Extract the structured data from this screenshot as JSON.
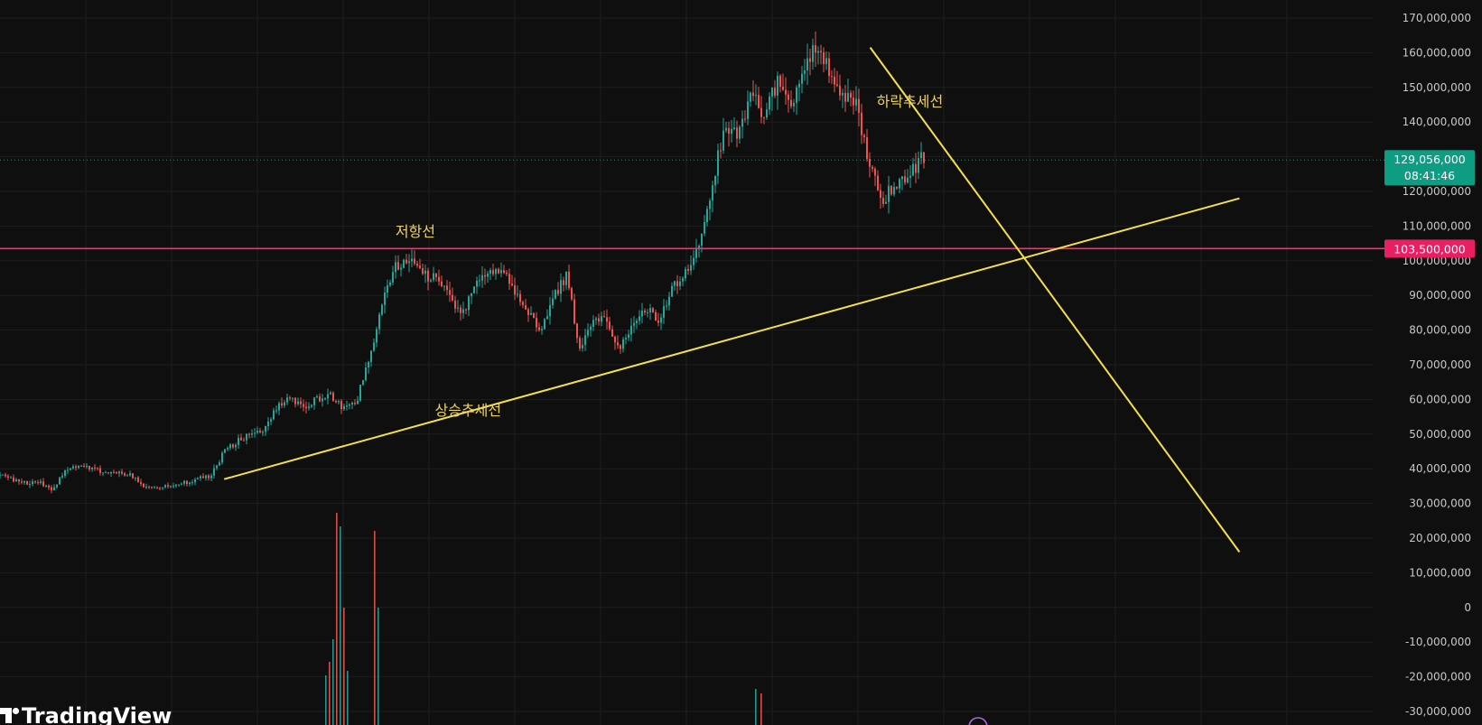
{
  "colors": {
    "background": "#0f0f0f",
    "grid": "#1f1f1f",
    "axis_text": "#c8c8c8",
    "candle_up": "#26a69a",
    "candle_down": "#ef5350",
    "trendline": "#f5e04a",
    "annotation_text": "#f0d25a",
    "resistance": "#ff2d6e",
    "last_price_badge": "#0e9c82",
    "resistance_badge": "#e91e63"
  },
  "brand": {
    "name": "TradingView",
    "icon": "tradingview-logo-icon"
  },
  "chart_data": {
    "type": "candlestick",
    "title": "",
    "xlabel": "",
    "ylabel": "",
    "ylim": [
      -30000000,
      170000000
    ],
    "yticks": [
      170000000,
      160000000,
      150000000,
      140000000,
      130000000,
      120000000,
      110000000,
      100000000,
      90000000,
      80000000,
      70000000,
      60000000,
      50000000,
      40000000,
      30000000,
      20000000,
      10000000,
      0,
      -10000000,
      -20000000,
      -30000000
    ],
    "ytick_labels": [
      "170,000,000",
      "160,000,000",
      "150,000,000",
      "140,000,000",
      "130,000,000",
      "120,000,000",
      "110,000,000",
      "100,000,000",
      "90,000,000",
      "80,000,000",
      "70,000,000",
      "60,000,000",
      "50,000,000",
      "40,000,000",
      "30,000,000",
      "20,000,000",
      "10,000,000",
      "0",
      "-10,000,000",
      "-20,000,000",
      "-30,000,000"
    ],
    "grid": true,
    "price_path_millions": [
      38,
      37,
      36,
      36,
      34,
      40,
      41,
      40,
      39,
      39,
      38,
      35,
      35,
      35,
      36,
      37,
      38,
      45,
      48,
      50,
      51,
      58,
      60,
      58,
      60,
      62,
      57,
      59,
      72,
      88,
      98,
      101,
      96,
      95,
      90,
      84,
      92,
      97,
      97,
      92,
      85,
      80,
      90,
      96,
      73,
      84,
      82,
      75,
      82,
      86,
      83,
      92,
      97,
      105,
      122,
      140,
      136,
      149,
      142,
      152,
      144,
      156,
      162,
      153,
      148,
      145,
      126,
      118,
      122,
      125,
      130
    ],
    "annotations": [
      {
        "text": "저항선",
        "price": 108500000,
        "index": 31.5
      },
      {
        "text": "상승추세선",
        "price": 57000000,
        "index": 35.5
      },
      {
        "text": "하락추세선",
        "price": 146000000,
        "index": 69
      }
    ],
    "resistance_level": {
      "price": 103500000,
      "label": "103,500,000"
    },
    "last_price": {
      "price": 129056000,
      "label": "129,056,000",
      "countdown": "08:41:46"
    },
    "trendlines": [
      {
        "name": "uptrend",
        "from": {
          "index": 17,
          "price": 37000000
        },
        "to": {
          "index": 94,
          "price": 118000000
        }
      },
      {
        "name": "downtrend",
        "from": {
          "index": 66,
          "price": 161500000
        },
        "to": {
          "index": 94,
          "price": 16000000
        }
      }
    ]
  }
}
